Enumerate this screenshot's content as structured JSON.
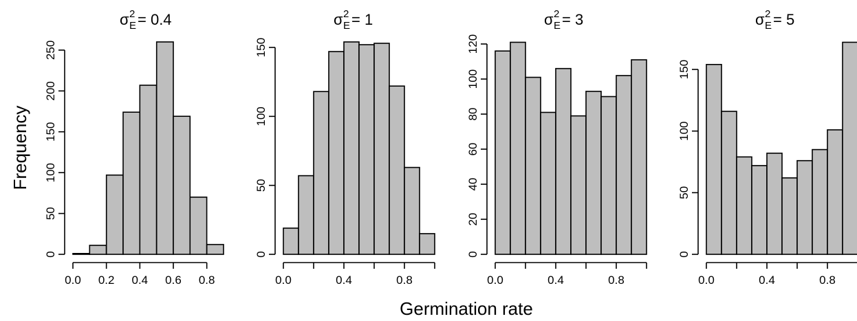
{
  "figure": {
    "xlabel": "Germination rate",
    "ylabel": "Frequency"
  },
  "chart_data": [
    {
      "type": "bar",
      "title": "σ²_E = 0.4",
      "title_sigma": "σ",
      "title_sup": "2",
      "title_sub": "E",
      "title_value": "= 0.4",
      "bin_width": 0.1,
      "bins": [
        [
          0.0,
          0.1
        ],
        [
          0.1,
          0.2
        ],
        [
          0.2,
          0.3
        ],
        [
          0.3,
          0.4
        ],
        [
          0.4,
          0.5
        ],
        [
          0.5,
          0.6
        ],
        [
          0.6,
          0.7
        ],
        [
          0.7,
          0.8
        ],
        [
          0.8,
          0.9
        ]
      ],
      "values": [
        1,
        11,
        97,
        174,
        207,
        260,
        169,
        70,
        12
      ],
      "xticks": [
        0.0,
        0.2,
        0.4,
        0.6,
        0.8
      ],
      "xtick_labels": [
        "0.0",
        "0.2",
        "0.4",
        "0.6",
        "0.8"
      ],
      "yticks": [
        0,
        50,
        100,
        150,
        200,
        250
      ],
      "ytick_labels": [
        "0",
        "50",
        "100",
        "150",
        "200",
        "250"
      ],
      "xlim": [
        0.0,
        0.9
      ],
      "ylim": [
        0,
        260
      ]
    },
    {
      "type": "bar",
      "title": "σ²_E = 1",
      "title_sigma": "σ",
      "title_sup": "2",
      "title_sub": "E",
      "title_value": "= 1",
      "bin_width": 0.1,
      "bins": [
        [
          0.0,
          0.1
        ],
        [
          0.1,
          0.2
        ],
        [
          0.2,
          0.3
        ],
        [
          0.3,
          0.4
        ],
        [
          0.4,
          0.5
        ],
        [
          0.5,
          0.6
        ],
        [
          0.6,
          0.7
        ],
        [
          0.7,
          0.8
        ],
        [
          0.8,
          0.9
        ],
        [
          0.9,
          1.0
        ]
      ],
      "values": [
        19,
        57,
        118,
        147,
        154,
        152,
        153,
        122,
        63,
        15
      ],
      "xticks": [
        0.0,
        0.2,
        0.4,
        0.6,
        0.8,
        1.0
      ],
      "xtick_labels": [
        "0.0",
        "",
        "0.4",
        "",
        "0.8",
        ""
      ],
      "yticks": [
        0,
        50,
        100,
        150
      ],
      "ytick_labels": [
        "0",
        "50",
        "100",
        "150"
      ],
      "xlim": [
        0.0,
        1.0
      ],
      "ylim": [
        0,
        150
      ]
    },
    {
      "type": "bar",
      "title": "σ²_E = 3",
      "title_sigma": "σ",
      "title_sup": "2",
      "title_sub": "E",
      "title_value": "= 3",
      "bin_width": 0.1,
      "bins": [
        [
          0.0,
          0.1
        ],
        [
          0.1,
          0.2
        ],
        [
          0.2,
          0.3
        ],
        [
          0.3,
          0.4
        ],
        [
          0.4,
          0.5
        ],
        [
          0.5,
          0.6
        ],
        [
          0.6,
          0.7
        ],
        [
          0.7,
          0.8
        ],
        [
          0.8,
          0.9
        ],
        [
          0.9,
          1.0
        ]
      ],
      "values": [
        116,
        121,
        101,
        81,
        106,
        79,
        93,
        90,
        102,
        111
      ],
      "xticks": [
        0.0,
        0.2,
        0.4,
        0.6,
        0.8,
        1.0
      ],
      "xtick_labels": [
        "0.0",
        "",
        "0.4",
        "",
        "0.8",
        ""
      ],
      "yticks": [
        0,
        20,
        40,
        60,
        80,
        100,
        120
      ],
      "ytick_labels": [
        "0",
        "20",
        "40",
        "60",
        "80",
        "100",
        "120"
      ],
      "xlim": [
        0.0,
        1.0
      ],
      "ylim": [
        0,
        120
      ]
    },
    {
      "type": "bar",
      "title": "σ²_E = 5",
      "title_sigma": "σ",
      "title_sup": "2",
      "title_sub": "E",
      "title_value": "= 5",
      "bin_width": 0.1,
      "bins": [
        [
          0.0,
          0.1
        ],
        [
          0.1,
          0.2
        ],
        [
          0.2,
          0.3
        ],
        [
          0.3,
          0.4
        ],
        [
          0.4,
          0.5
        ],
        [
          0.5,
          0.6
        ],
        [
          0.6,
          0.7
        ],
        [
          0.7,
          0.8
        ],
        [
          0.8,
          0.9
        ],
        [
          0.9,
          1.0
        ]
      ],
      "values": [
        154,
        116,
        79,
        72,
        82,
        62,
        76,
        85,
        101,
        172
      ],
      "xticks": [
        0.0,
        0.2,
        0.4,
        0.6,
        0.8,
        1.0
      ],
      "xtick_labels": [
        "0.0",
        "",
        "0.4",
        "",
        "0.8",
        ""
      ],
      "yticks": [
        0,
        50,
        100,
        150
      ],
      "ytick_labels": [
        "0",
        "50",
        "100",
        "150"
      ],
      "xlim": [
        0.0,
        1.0
      ],
      "ylim": [
        0,
        150
      ]
    }
  ],
  "colors": {
    "bar_fill": "#bebebe",
    "bar_stroke": "#000000"
  }
}
